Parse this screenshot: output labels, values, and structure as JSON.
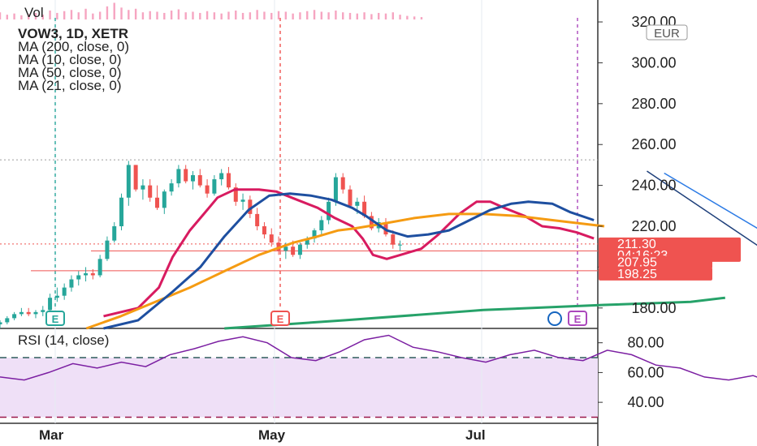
{
  "chart_data": {
    "type": "candlestick",
    "symbol": "VOW3",
    "interval": "1D",
    "exchange": "XETR",
    "currency": "EUR",
    "header": {
      "vol_label": "Vol",
      "title": "VOW3, 1D, XETR",
      "indicators": [
        "MA (200, close, 0)",
        "MA (10, close, 0)",
        "MA (50, close, 0)",
        "MA (21, close, 0)"
      ],
      "rsi_label": "RSI (14, close)"
    },
    "price_axis": {
      "range": [
        170,
        322
      ],
      "ticks": [
        180,
        200,
        220,
        240,
        260,
        280,
        300,
        320
      ],
      "tick_labels": [
        "180.00",
        "200.00",
        "220.00",
        "240.00",
        "260.00",
        "280.00",
        "300.00",
        "320.00"
      ]
    },
    "rsi_axis": {
      "range": [
        27,
        88
      ],
      "ticks": [
        40,
        60,
        80
      ],
      "tick_labels": [
        "40.00",
        "60.00",
        "80.00"
      ],
      "upper_band": 70,
      "lower_band": 30
    },
    "x_labels": [
      "Mar",
      "May",
      "Jul"
    ],
    "price_tags": [
      {
        "price": 211.3,
        "text": "211.30",
        "countdown": "04:16:23",
        "color": "#ef5350"
      },
      {
        "price": 207.95,
        "text": "207.95",
        "color": "#ef5350"
      },
      {
        "price": 198.25,
        "text": "198.25",
        "color": "#ef5350"
      }
    ],
    "horizontal_levels": [
      {
        "price": 207.95,
        "color": "#ef5350"
      },
      {
        "price": 198.25,
        "color": "#ef5350"
      },
      {
        "price": 252.5,
        "color": "#9e9e9e",
        "style": "dotted"
      },
      {
        "price": 211.3,
        "color": "#ef5350",
        "style": "dotted"
      }
    ],
    "earnings_markers": [
      {
        "label": "E",
        "color": "#26a69a"
      },
      {
        "label": "E",
        "color": "#ef5350"
      },
      {
        "label": "E",
        "color": "#ab47bc"
      }
    ],
    "moving_averages": [
      {
        "name": "MA (200, close, 0)",
        "color": "#26a269",
        "points": [
          [
            65,
            170
          ],
          [
            100,
            174
          ],
          [
            140,
            179
          ],
          [
            175,
            181.5
          ],
          [
            200,
            183
          ],
          [
            210,
            185
          ]
        ]
      },
      {
        "name": "MA (10, close, 0)",
        "color": "#d81b60",
        "points": [
          [
            30,
            176
          ],
          [
            40,
            180
          ],
          [
            46,
            190
          ],
          [
            50,
            205
          ],
          [
            55,
            218
          ],
          [
            60,
            228
          ],
          [
            63,
            234
          ],
          [
            68,
            238
          ],
          [
            75,
            238
          ],
          [
            80,
            237
          ],
          [
            86,
            233
          ],
          [
            92,
            229
          ],
          [
            97,
            224
          ],
          [
            102,
            220
          ],
          [
            105,
            214
          ],
          [
            108,
            206
          ],
          [
            112,
            204
          ],
          [
            116,
            206
          ],
          [
            122,
            209
          ],
          [
            127,
            216
          ],
          [
            133,
            226
          ],
          [
            138,
            232
          ],
          [
            142,
            232
          ],
          [
            146,
            229
          ],
          [
            152,
            225
          ],
          [
            157,
            220
          ],
          [
            162,
            219
          ],
          [
            167,
            217
          ],
          [
            172,
            214
          ]
        ]
      },
      {
        "name": "MA (50, close, 0)",
        "color": "#f59b12",
        "points": [
          [
            25,
            170
          ],
          [
            35,
            176
          ],
          [
            45,
            183
          ],
          [
            55,
            190
          ],
          [
            65,
            198
          ],
          [
            75,
            206
          ],
          [
            85,
            212
          ],
          [
            92,
            215
          ],
          [
            98,
            218
          ],
          [
            103,
            219
          ],
          [
            110,
            221
          ],
          [
            120,
            224
          ],
          [
            130,
            226
          ],
          [
            140,
            226
          ],
          [
            150,
            225
          ],
          [
            160,
            223
          ],
          [
            170,
            221
          ],
          [
            175,
            220
          ]
        ]
      },
      {
        "name": "MA (21, close, 0)",
        "color": "#1e4fa0",
        "points": [
          [
            30,
            170
          ],
          [
            40,
            174
          ],
          [
            50,
            188
          ],
          [
            58,
            200
          ],
          [
            65,
            215
          ],
          [
            72,
            228
          ],
          [
            78,
            235
          ],
          [
            84,
            236
          ],
          [
            90,
            235
          ],
          [
            96,
            233
          ],
          [
            102,
            229
          ],
          [
            106,
            225
          ],
          [
            112,
            218
          ],
          [
            118,
            215
          ],
          [
            124,
            216
          ],
          [
            130,
            218
          ],
          [
            136,
            223
          ],
          [
            142,
            228
          ],
          [
            148,
            231
          ],
          [
            153,
            232
          ],
          [
            160,
            231
          ],
          [
            165,
            227
          ],
          [
            172,
            223
          ]
        ]
      }
    ],
    "drawings": [
      {
        "type": "trend_line",
        "color": "#1e3f7a",
        "from": [
          77,
          247
        ],
        "to": [
          121,
          197
        ]
      },
      {
        "type": "trend_line",
        "color": "#1e3f7a",
        "from": [
          121,
          197
        ],
        "to": [
          140,
          247
        ]
      },
      {
        "type": "trend_line",
        "color": "#111111",
        "from": [
          112,
          198
        ],
        "to": [
          160,
          252
        ]
      },
      {
        "type": "trend_line",
        "color": "#2c7be5",
        "from": [
          82,
          246
        ],
        "to": [
          130,
          198
        ]
      }
    ],
    "candles": [
      [
        0,
        172,
        174,
        170,
        173
      ],
      [
        3,
        173,
        176,
        172,
        175
      ],
      [
        6,
        175,
        178,
        174,
        177
      ],
      [
        9,
        177,
        180,
        176,
        178
      ],
      [
        12,
        178,
        180,
        176,
        177
      ],
      [
        15,
        177,
        179,
        175,
        178
      ],
      [
        18,
        178,
        181,
        176,
        179
      ],
      [
        21,
        179,
        187,
        178,
        185
      ],
      [
        24,
        185,
        190,
        183,
        186
      ],
      [
        27,
        186,
        192,
        184,
        190
      ],
      [
        30,
        190,
        196,
        188,
        194
      ],
      [
        33,
        194,
        198,
        191,
        196
      ],
      [
        36,
        196,
        200,
        193,
        197
      ],
      [
        39,
        197,
        199,
        194,
        196
      ],
      [
        42,
        196,
        206,
        195,
        204
      ],
      [
        45,
        204,
        215,
        203,
        213
      ],
      [
        48,
        213,
        222,
        212,
        220
      ],
      [
        51,
        220,
        236,
        218,
        234
      ],
      [
        54,
        234,
        252,
        230,
        250
      ],
      [
        57,
        250,
        250,
        237,
        238
      ],
      [
        60,
        238,
        243,
        233,
        240
      ],
      [
        63,
        240,
        243,
        232,
        234
      ],
      [
        66,
        234,
        240,
        228,
        229
      ],
      [
        69,
        229,
        238,
        226,
        237
      ],
      [
        72,
        237,
        243,
        235,
        241
      ],
      [
        75,
        241,
        250,
        239,
        248
      ],
      [
        78,
        248,
        250,
        241,
        242
      ],
      [
        81,
        242,
        247,
        238,
        245
      ],
      [
        84,
        245,
        248,
        239,
        240
      ],
      [
        87,
        240,
        243,
        234,
        236
      ],
      [
        90,
        236,
        245,
        235,
        243
      ],
      [
        93,
        243,
        248,
        240,
        246
      ],
      [
        96,
        246,
        249,
        238,
        239
      ],
      [
        99,
        239,
        241,
        230,
        232
      ],
      [
        102,
        232,
        236,
        228,
        233
      ],
      [
        105,
        233,
        235,
        224,
        226
      ],
      [
        108,
        226,
        229,
        218,
        220
      ],
      [
        111,
        220,
        222,
        214,
        216
      ],
      [
        114,
        216,
        219,
        210,
        212
      ],
      [
        117,
        212,
        215,
        206,
        208
      ],
      [
        120,
        208,
        212,
        204,
        210
      ],
      [
        123,
        210,
        213,
        205,
        206
      ],
      [
        126,
        206,
        212,
        204,
        211
      ],
      [
        129,
        211,
        215,
        209,
        214
      ],
      [
        132,
        214,
        219,
        212,
        218
      ],
      [
        135,
        218,
        225,
        216,
        223
      ],
      [
        138,
        223,
        234,
        221,
        232
      ],
      [
        141,
        232,
        246,
        230,
        244
      ],
      [
        144,
        244,
        246,
        236,
        238
      ],
      [
        147,
        238,
        240,
        229,
        230
      ],
      [
        150,
        230,
        234,
        226,
        232
      ],
      [
        153,
        232,
        235,
        224,
        225
      ],
      [
        156,
        225,
        227,
        218,
        219
      ],
      [
        159,
        219,
        224,
        217,
        222
      ],
      [
        162,
        222,
        224,
        215,
        216
      ],
      [
        165,
        216,
        218,
        209,
        211
      ],
      [
        168,
        211,
        213,
        208,
        211
      ]
    ],
    "rsi": [
      [
        0,
        57
      ],
      [
        3,
        55
      ],
      [
        6,
        60
      ],
      [
        9,
        66
      ],
      [
        12,
        63
      ],
      [
        15,
        67
      ],
      [
        18,
        64
      ],
      [
        21,
        72
      ],
      [
        24,
        76
      ],
      [
        27,
        81
      ],
      [
        30,
        84
      ],
      [
        33,
        80
      ],
      [
        36,
        70
      ],
      [
        39,
        68
      ],
      [
        42,
        74
      ],
      [
        45,
        82
      ],
      [
        48,
        85
      ],
      [
        51,
        77
      ],
      [
        54,
        74
      ],
      [
        57,
        70
      ],
      [
        60,
        67
      ],
      [
        63,
        72
      ],
      [
        66,
        75
      ],
      [
        69,
        70
      ],
      [
        72,
        68
      ],
      [
        75,
        75
      ],
      [
        78,
        72
      ],
      [
        81,
        65
      ],
      [
        84,
        63
      ],
      [
        87,
        57
      ],
      [
        90,
        55
      ],
      [
        93,
        58
      ],
      [
        96,
        52
      ],
      [
        99,
        44
      ],
      [
        102,
        41
      ],
      [
        105,
        46
      ],
      [
        108,
        40
      ],
      [
        111,
        38
      ],
      [
        114,
        43
      ],
      [
        117,
        48
      ],
      [
        120,
        45
      ],
      [
        123,
        50
      ],
      [
        126,
        48
      ],
      [
        129,
        52
      ],
      [
        132,
        56
      ],
      [
        135,
        60
      ],
      [
        138,
        65
      ],
      [
        141,
        70
      ],
      [
        144,
        72
      ],
      [
        147,
        68
      ],
      [
        150,
        63
      ],
      [
        153,
        56
      ],
      [
        156,
        50
      ],
      [
        159,
        44
      ],
      [
        162,
        48
      ],
      [
        165,
        40
      ],
      [
        168,
        42
      ],
      [
        171,
        38
      ],
      [
        174,
        37
      ],
      [
        177,
        38
      ]
    ],
    "volume": [
      [
        0,
        1.2
      ],
      [
        3,
        0.8
      ],
      [
        6,
        1.0
      ],
      [
        9,
        0.7
      ],
      [
        12,
        0.9
      ],
      [
        15,
        1.1
      ],
      [
        18,
        0.8
      ],
      [
        21,
        1.5
      ],
      [
        24,
        1.1
      ],
      [
        27,
        1.4
      ],
      [
        30,
        1.6
      ],
      [
        33,
        1.2
      ],
      [
        36,
        1.8
      ],
      [
        39,
        1.0
      ],
      [
        42,
        1.3
      ],
      [
        45,
        2.2
      ],
      [
        48,
        2.8
      ],
      [
        51,
        2.0
      ],
      [
        54,
        1.6
      ],
      [
        57,
        1.8
      ],
      [
        60,
        1.2
      ],
      [
        63,
        1.4
      ],
      [
        66,
        1.3
      ],
      [
        69,
        1.1
      ],
      [
        72,
        1.5
      ],
      [
        75,
        1.7
      ],
      [
        78,
        1.2
      ],
      [
        81,
        1.3
      ],
      [
        84,
        1.1
      ],
      [
        87,
        1.4
      ],
      [
        90,
        1.2
      ],
      [
        93,
        1.0
      ],
      [
        96,
        1.3
      ],
      [
        99,
        1.5
      ],
      [
        102,
        1.1
      ],
      [
        105,
        1.2
      ],
      [
        108,
        1.6
      ],
      [
        111,
        1.3
      ],
      [
        114,
        1.1
      ],
      [
        117,
        1.4
      ],
      [
        120,
        1.3
      ],
      [
        123,
        1.0
      ],
      [
        126,
        1.2
      ],
      [
        129,
        1.4
      ],
      [
        132,
        1.6
      ],
      [
        135,
        1.3
      ],
      [
        138,
        1.2
      ],
      [
        141,
        1.5
      ],
      [
        144,
        1.2
      ],
      [
        147,
        1.1
      ],
      [
        150,
        1.0
      ],
      [
        153,
        1.2
      ],
      [
        156,
        0.9
      ],
      [
        159,
        1.1
      ],
      [
        162,
        1.0
      ],
      [
        165,
        1.2
      ],
      [
        168,
        0.8
      ],
      [
        171,
        0.6
      ],
      [
        174,
        0.5
      ],
      [
        177,
        0.4
      ]
    ]
  }
}
